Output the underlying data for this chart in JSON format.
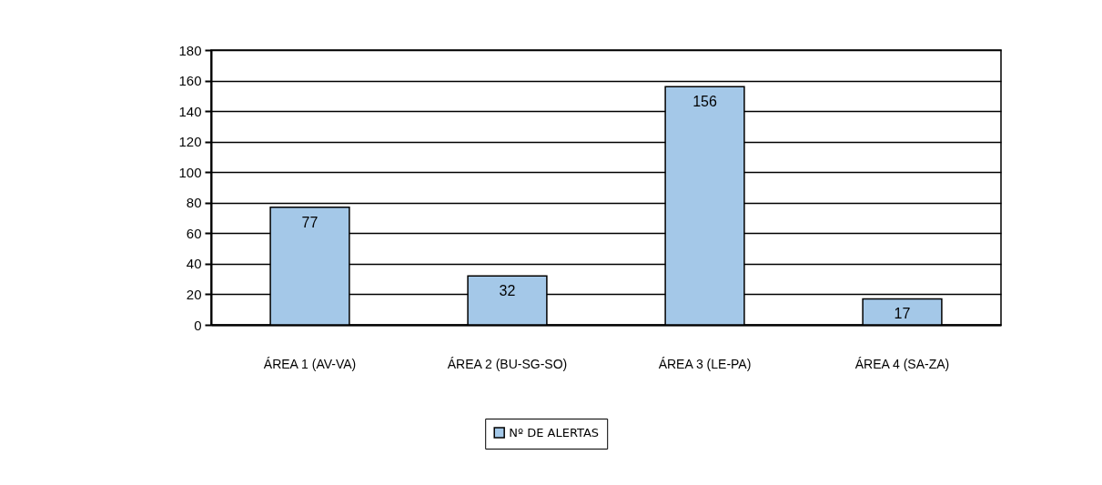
{
  "chart_data": {
    "type": "bar",
    "categories": [
      "ÁREA 1 (AV-VA)",
      "ÁREA 2 (BU-SG-SO)",
      "ÁREA 3 (LE-PA)",
      "ÁREA 4 (SA-ZA)"
    ],
    "series": [
      {
        "name": "Nº DE ALERTAS",
        "color": "#a4c8e8",
        "values": [
          77,
          32,
          156,
          17
        ]
      }
    ],
    "ylim": [
      0,
      180
    ],
    "yticks": [
      0,
      20,
      40,
      60,
      80,
      100,
      120,
      140,
      160,
      180
    ],
    "grid": "y",
    "data_labels": true,
    "legend": "bottom"
  }
}
